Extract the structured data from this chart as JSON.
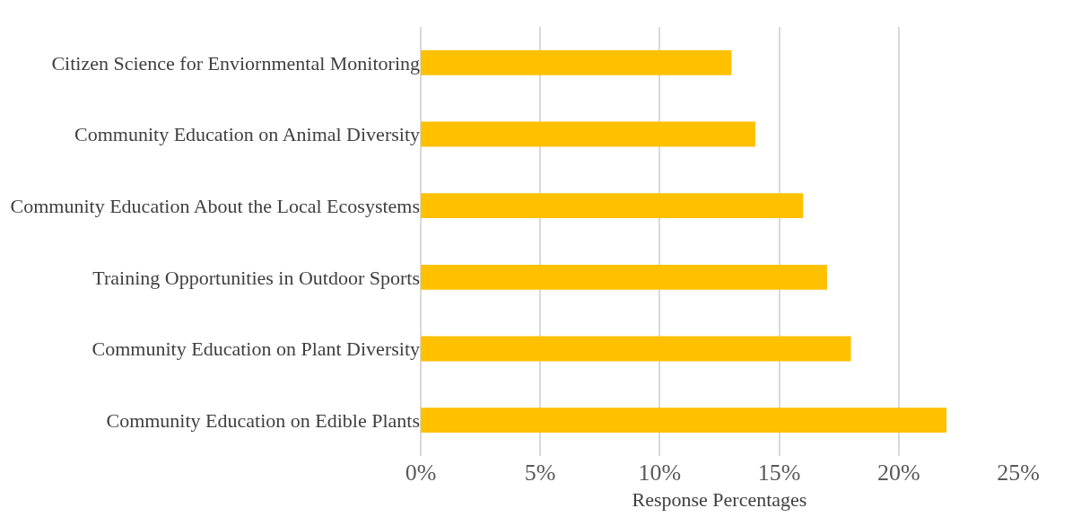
{
  "chart_data": {
    "type": "bar",
    "orientation": "horizontal",
    "xlabel": "Response Percentages",
    "categories": [
      "Citizen Science for Enviornmental Monitoring",
      "Community Education on Animal Diversity",
      "Community Education About the Local Ecosystems",
      "Training Opportunities in Outdoor Sports",
      "Community Education on Plant Diversity",
      "Community Education on Edible Plants"
    ],
    "values": [
      13,
      14,
      16,
      17,
      18,
      22
    ],
    "color": "#ffc000",
    "xlim": [
      0,
      25
    ],
    "xticks": [
      {
        "value": 0,
        "label": "0%"
      },
      {
        "value": 5,
        "label": "5%"
      },
      {
        "value": 10,
        "label": "10%"
      },
      {
        "value": 15,
        "label": "15%"
      },
      {
        "value": 20,
        "label": "20%"
      },
      {
        "value": 25,
        "label": "25%"
      }
    ],
    "grid": "x"
  }
}
